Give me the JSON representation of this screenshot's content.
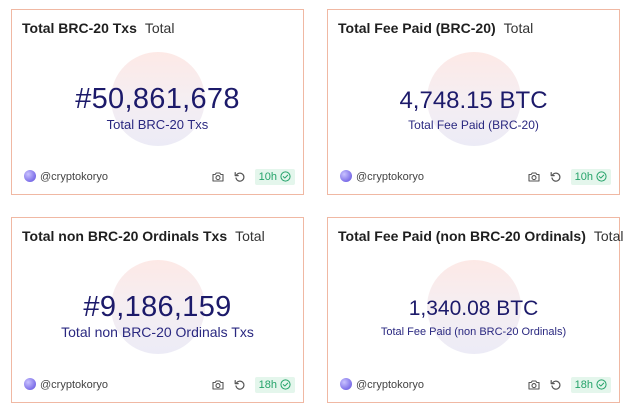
{
  "cards": [
    {
      "title": "Total BRC-20 Txs",
      "subtitle": "Total",
      "value": "#50,861,678",
      "value_label": "Total BRC-20 Txs",
      "author": "@cryptokoryo",
      "age": "10h",
      "icons": [
        "camera-icon",
        "refresh-icon",
        "check-circle-icon"
      ]
    },
    {
      "title": "Total Fee Paid (BRC-20)",
      "subtitle": "Total",
      "value": "4,748.15 BTC",
      "value_label": "Total Fee Paid (BRC-20)",
      "author": "@cryptokoryo",
      "age": "10h",
      "icons": [
        "camera-icon",
        "refresh-icon",
        "check-circle-icon"
      ]
    },
    {
      "title": "Total non BRC-20 Ordinals Txs",
      "subtitle": "Total",
      "value": "#9,186,159",
      "value_label": "Total non BRC-20 Ordinals Txs",
      "author": "@cryptokoryo",
      "age": "18h",
      "icons": [
        "camera-icon",
        "refresh-icon",
        "check-circle-icon"
      ]
    },
    {
      "title": "Total Fee Paid (non BRC-20 Ordinals)",
      "subtitle": "Total",
      "value": "1,340.08 BTC",
      "value_label": "Total Fee Paid (non BRC-20 Ordinals)",
      "author": "@cryptokoryo",
      "age": "18h",
      "icons": [
        "camera-icon",
        "refresh-icon",
        "check-circle-icon"
      ]
    }
  ],
  "colors": {
    "card_border": "#f0b8a3",
    "value_text": "#1c1a6a",
    "badge_text": "#25a36a",
    "badge_bg": "#e4f6ec"
  }
}
